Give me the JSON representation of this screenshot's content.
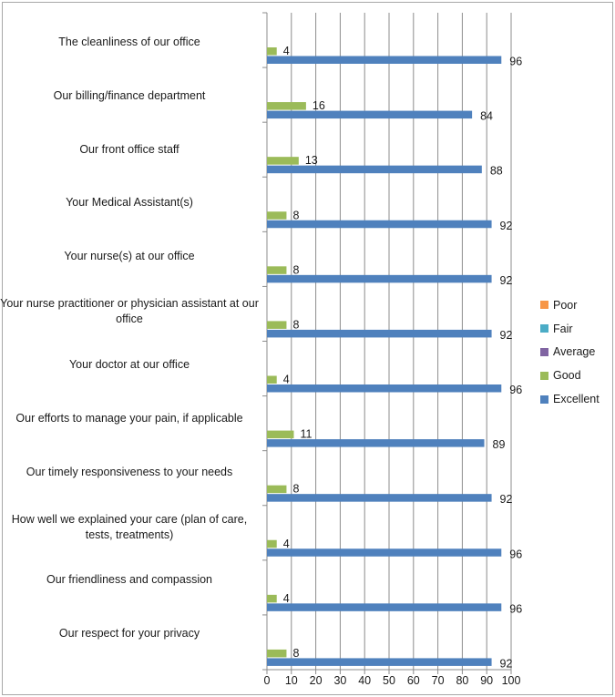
{
  "chart_data": {
    "type": "bar",
    "orientation": "horizontal",
    "categories": [
      "The cleanliness of our office",
      "Our billing/finance department",
      "Our front office staff",
      "Your Medical Assistant(s)",
      "Your nurse(s) at our office",
      "Your nurse practitioner or physician assistant at our office",
      "Your doctor at our office",
      "Our efforts to manage your pain, if applicable",
      "Our timely responsiveness to your needs",
      "How well we explained your care (plan of care, tests, treatments)",
      "Our friendliness and compassion",
      "Our respect for your privacy"
    ],
    "series": [
      {
        "name": "Poor",
        "color": "#f79646",
        "values": [
          0,
          0,
          0,
          0,
          0,
          0,
          0,
          0,
          0,
          0,
          0,
          0
        ]
      },
      {
        "name": "Fair",
        "color": "#4bacc6",
        "values": [
          0,
          0,
          0,
          0,
          0,
          0,
          0,
          0,
          0,
          0,
          0,
          0
        ]
      },
      {
        "name": "Average",
        "color": "#8064a2",
        "values": [
          0,
          0,
          0,
          0,
          0,
          0,
          0,
          0,
          0,
          0,
          0,
          0
        ]
      },
      {
        "name": "Good",
        "color": "#9bbb59",
        "values": [
          4,
          16,
          13,
          8,
          8,
          8,
          4,
          11,
          8,
          4,
          4,
          8
        ]
      },
      {
        "name": "Excellent",
        "color": "#4f81bd",
        "values": [
          96,
          84,
          88,
          92,
          92,
          92,
          96,
          89,
          92,
          96,
          96,
          92
        ]
      }
    ],
    "xlim": [
      0,
      100
    ],
    "xticks": [
      0,
      10,
      20,
      30,
      40,
      50,
      60,
      70,
      80,
      90,
      100
    ],
    "grid": "vertical",
    "legend_position": "right"
  }
}
